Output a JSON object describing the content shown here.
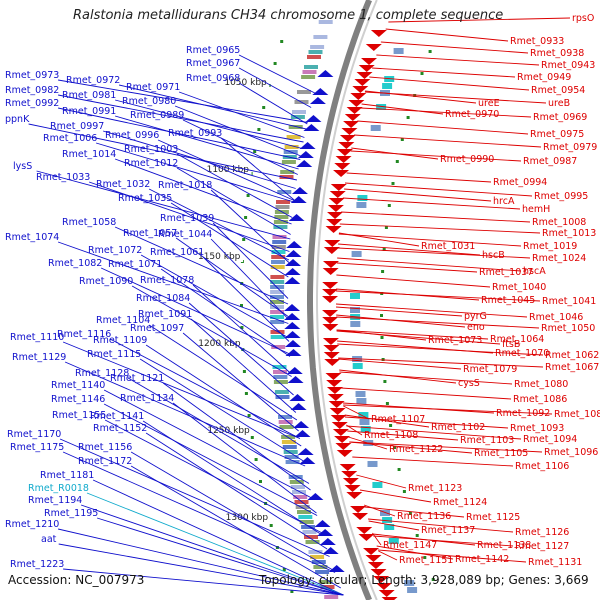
{
  "title": "Ralstonia metallidurans CH34 chromosome 1, complete sequence",
  "footer": {
    "accession": "Accession: NC_007973",
    "topology": "Topology: circular; Length: 3,928,089 bp; Genes: 3,669"
  },
  "colors": {
    "left_gene": "#1010cc",
    "right_gene": "#dd0000",
    "rrna_gene": "#11aacc",
    "backbone": "#808080",
    "tick_marker": "#228822"
  },
  "ruler": [
    {
      "label": "1050 kbp"
    },
    {
      "label": "1100 kbp"
    },
    {
      "label": "1150 kbp"
    },
    {
      "label": "1200 kbp"
    },
    {
      "label": "1250 kbp"
    },
    {
      "label": "1300 kbp"
    }
  ],
  "left_labels": [
    "Rmet_0965",
    "Rmet_0967",
    "Rmet_0968",
    "Rmet_0973",
    "Rmet_0972",
    "Rmet_0971",
    "Rmet_0982",
    "Rmet_0981",
    "Rmet_0980",
    "Rmet_0992",
    "Rmet_0991",
    "Rmet_0989",
    "ppnK",
    "Rmet_0997",
    "Rmet_1006",
    "Rmet_0996",
    "Rmet_0993",
    "Rmet_1003",
    "Rmet_1014",
    "Rmet_1012",
    "lysS",
    "Rmet_1033",
    "Rmet_1032",
    "Rmet_1018",
    "Rmet_1035",
    "Rmet_1039",
    "Rmet_1058",
    "Rmet_1057",
    "Rmet_1044",
    "Rmet_1074",
    "Rmet_1072",
    "Rmet_1061",
    "Rmet_1082",
    "Rmet_1071",
    "Rmet_1078",
    "Rmet_1090",
    "Rmet_1084",
    "Rmet_1091",
    "Rmet_1104",
    "Rmet_1110",
    "Rmet_1097",
    "Rmet_1116",
    "Rmet_1109",
    "Rmet_1115",
    "Rmet_1129",
    "Rmet_1128",
    "Rmet_1121",
    "Rmet_1140",
    "Rmet_1134",
    "Rmet_1146",
    "Rmet_1155",
    "Rmet_1141",
    "Rmet_1152",
    "Rmet_1170",
    "Rmet_1156",
    "Rmet_1175",
    "Rmet_1172",
    "Rmet_1181",
    "Rmet_R0018",
    "Rmet_1194",
    "Rmet_1195",
    "Rmet_1210",
    "aat",
    "Rmet_1223"
  ],
  "right_labels": [
    "rpsO",
    "Rmet_0933",
    "Rmet_0938",
    "Rmet_0943",
    "Rmet_0949",
    "Rmet_0954",
    "ureE",
    "ureB",
    "Rmet_0970",
    "Rmet_0969",
    "Rmet_0975",
    "Rmet_0979",
    "Rmet_0990",
    "Rmet_0987",
    "Rmet_0994",
    "Rmet_0995",
    "hrcA",
    "hemH",
    "Rmet_1008",
    "Rmet_1013",
    "Rmet_1031",
    "Rmet_1019",
    "hscB",
    "Rmet_1024",
    "Rmet_1037",
    "hscA",
    "Rmet_1040",
    "Rmet_1045",
    "Rmet_1041",
    "pyrG",
    "Rmet_1046",
    "eno",
    "Rmet_1050",
    "Rmet_1073",
    "Rmet_1064",
    "ftsB",
    "Rmet_1070",
    "Rmet_1062",
    "Rmet_1079",
    "Rmet_1067",
    "cysS",
    "Rmet_1080",
    "Rmet_1086",
    "Rmet_1092",
    "Rmet_1087",
    "Rmet_1107",
    "Rmet_1102",
    "Rmet_1093",
    "Rmet_1108",
    "Rmet_1103",
    "Rmet_1094",
    "Rmet_1122",
    "Rmet_1105",
    "Rmet_1096",
    "Rmet_1106",
    "Rmet_1123",
    "Rmet_1124",
    "Rmet_1136",
    "Rmet_1125",
    "Rmet_1137",
    "Rmet_1126",
    "Rmet_1147",
    "Rmet_1138",
    "Rmet_1127",
    "Rmet_1151",
    "Rmet_1142",
    "Rmet_1131"
  ]
}
